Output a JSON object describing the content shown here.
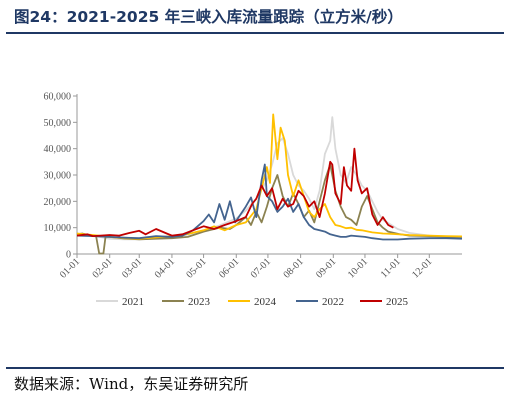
{
  "figure": {
    "title": "图24：2021-2025 年三峡入库流量跟踪（立方米/秒）",
    "source": "数据来源：Wind，东吴证券研究所"
  },
  "chart_data": {
    "type": "line",
    "title": "",
    "xlabel": "",
    "ylabel": "",
    "x_ticks": [
      "01-01",
      "02-01",
      "03-01",
      "04-01",
      "05-01",
      "06-01",
      "07-01",
      "08-01",
      "09-01",
      "10-01",
      "11-01",
      "12-01"
    ],
    "y_ticks": [
      "0",
      "10,000",
      "20,000",
      "30,000",
      "40,000",
      "50,000",
      "60,000"
    ],
    "ylim": [
      0,
      60000
    ],
    "xlim_days": [
      0,
      365
    ],
    "legend_position": "bottom",
    "grid": false,
    "series": [
      {
        "name": "2021",
        "color": "#d9d9d9",
        "points": [
          [
            0,
            7200
          ],
          [
            15,
            6900
          ],
          [
            31,
            5800
          ],
          [
            45,
            5600
          ],
          [
            59,
            5600
          ],
          [
            75,
            5900
          ],
          [
            90,
            6200
          ],
          [
            105,
            7400
          ],
          [
            120,
            9000
          ],
          [
            135,
            10800
          ],
          [
            151,
            13500
          ],
          [
            160,
            16500
          ],
          [
            170,
            21000
          ],
          [
            180,
            28000
          ],
          [
            185,
            34000
          ],
          [
            190,
            42000
          ],
          [
            195,
            44000
          ],
          [
            200,
            38000
          ],
          [
            205,
            30000
          ],
          [
            210,
            26000
          ],
          [
            215,
            24000
          ],
          [
            220,
            21000
          ],
          [
            225,
            17000
          ],
          [
            230,
            24000
          ],
          [
            235,
            38000
          ],
          [
            240,
            43000
          ],
          [
            242,
            52000
          ],
          [
            245,
            40000
          ],
          [
            250,
            30000
          ],
          [
            255,
            27000
          ],
          [
            260,
            33000
          ],
          [
            265,
            30000
          ],
          [
            270,
            26000
          ],
          [
            275,
            24000
          ],
          [
            280,
            20000
          ],
          [
            285,
            16000
          ],
          [
            290,
            13000
          ],
          [
            300,
            10500
          ],
          [
            304,
            9500
          ],
          [
            315,
            8000
          ],
          [
            334,
            7000
          ],
          [
            350,
            6500
          ],
          [
            365,
            6200
          ]
        ]
      },
      {
        "name": "2023",
        "color": "#8b8251",
        "points": [
          [
            0,
            7500
          ],
          [
            5,
            7800
          ],
          [
            10,
            7200
          ],
          [
            15,
            6800
          ],
          [
            18,
            7000
          ],
          [
            20,
            2500
          ],
          [
            21,
            200
          ],
          [
            25,
            200
          ],
          [
            27,
            6500
          ],
          [
            31,
            6500
          ],
          [
            45,
            5900
          ],
          [
            59,
            5600
          ],
          [
            75,
            5800
          ],
          [
            90,
            6000
          ],
          [
            105,
            6500
          ],
          [
            120,
            8500
          ],
          [
            135,
            10000
          ],
          [
            145,
            9500
          ],
          [
            151,
            11000
          ],
          [
            160,
            14000
          ],
          [
            165,
            11000
          ],
          [
            170,
            16000
          ],
          [
            175,
            12000
          ],
          [
            180,
            18000
          ],
          [
            185,
            25000
          ],
          [
            190,
            30000
          ],
          [
            195,
            22000
          ],
          [
            200,
            18000
          ],
          [
            205,
            23000
          ],
          [
            210,
            19000
          ],
          [
            215,
            14000
          ],
          [
            220,
            16500
          ],
          [
            225,
            12000
          ],
          [
            230,
            20000
          ],
          [
            235,
            28000
          ],
          [
            240,
            34000
          ],
          [
            245,
            24000
          ],
          [
            250,
            18000
          ],
          [
            255,
            14000
          ],
          [
            260,
            13000
          ],
          [
            265,
            11000
          ],
          [
            270,
            18000
          ],
          [
            275,
            22000
          ],
          [
            280,
            17000
          ],
          [
            285,
            12000
          ],
          [
            290,
            10000
          ],
          [
            295,
            8500
          ],
          [
            305,
            7600
          ],
          [
            315,
            7000
          ],
          [
            334,
            6800
          ],
          [
            350,
            6600
          ],
          [
            365,
            6500
          ]
        ]
      },
      {
        "name": "2024",
        "color": "#ffc000",
        "points": [
          [
            0,
            7800
          ],
          [
            15,
            7200
          ],
          [
            31,
            6500
          ],
          [
            45,
            6000
          ],
          [
            59,
            5800
          ],
          [
            75,
            6300
          ],
          [
            90,
            6800
          ],
          [
            105,
            7600
          ],
          [
            120,
            9000
          ],
          [
            130,
            10500
          ],
          [
            140,
            9000
          ],
          [
            151,
            11000
          ],
          [
            160,
            12000
          ],
          [
            170,
            17000
          ],
          [
            175,
            25000
          ],
          [
            180,
            33000
          ],
          [
            183,
            27000
          ],
          [
            186,
            53000
          ],
          [
            190,
            36000
          ],
          [
            193,
            48000
          ],
          [
            197,
            43000
          ],
          [
            200,
            30000
          ],
          [
            205,
            22000
          ],
          [
            210,
            28000
          ],
          [
            215,
            22000
          ],
          [
            220,
            16000
          ],
          [
            225,
            14000
          ],
          [
            230,
            17000
          ],
          [
            235,
            19000
          ],
          [
            240,
            14000
          ],
          [
            245,
            11000
          ],
          [
            250,
            10500
          ],
          [
            255,
            9800
          ],
          [
            260,
            10000
          ],
          [
            265,
            9200
          ],
          [
            270,
            9000
          ],
          [
            280,
            8200
          ],
          [
            290,
            7800
          ],
          [
            300,
            7600
          ],
          [
            315,
            7200
          ],
          [
            334,
            7000
          ],
          [
            350,
            6800
          ],
          [
            365,
            6700
          ]
        ]
      },
      {
        "name": "2022",
        "color": "#44648f",
        "points": [
          [
            0,
            7000
          ],
          [
            15,
            6800
          ],
          [
            31,
            6500
          ],
          [
            45,
            6200
          ],
          [
            59,
            6000
          ],
          [
            75,
            6800
          ],
          [
            90,
            6500
          ],
          [
            100,
            7000
          ],
          [
            110,
            9000
          ],
          [
            120,
            12500
          ],
          [
            125,
            15000
          ],
          [
            130,
            12000
          ],
          [
            135,
            19000
          ],
          [
            140,
            13000
          ],
          [
            145,
            20000
          ],
          [
            150,
            12000
          ],
          [
            155,
            15000
          ],
          [
            160,
            18000
          ],
          [
            165,
            21500
          ],
          [
            170,
            14000
          ],
          [
            175,
            28000
          ],
          [
            178,
            34000
          ],
          [
            180,
            22000
          ],
          [
            185,
            20000
          ],
          [
            190,
            16000
          ],
          [
            195,
            18000
          ],
          [
            200,
            21000
          ],
          [
            205,
            16000
          ],
          [
            210,
            19000
          ],
          [
            215,
            14000
          ],
          [
            220,
            11000
          ],
          [
            225,
            9500
          ],
          [
            230,
            9000
          ],
          [
            235,
            8500
          ],
          [
            240,
            7500
          ],
          [
            245,
            7000
          ],
          [
            250,
            6500
          ],
          [
            255,
            6500
          ],
          [
            260,
            7000
          ],
          [
            265,
            6800
          ],
          [
            273,
            6500
          ],
          [
            280,
            6000
          ],
          [
            290,
            5500
          ],
          [
            304,
            5500
          ],
          [
            315,
            5800
          ],
          [
            334,
            6000
          ],
          [
            350,
            6000
          ],
          [
            365,
            5800
          ]
        ]
      },
      {
        "name": "2025",
        "color": "#c00000",
        "points": [
          [
            0,
            7000
          ],
          [
            10,
            7500
          ],
          [
            15,
            6800
          ],
          [
            31,
            7200
          ],
          [
            40,
            7000
          ],
          [
            50,
            8000
          ],
          [
            59,
            8800
          ],
          [
            65,
            7500
          ],
          [
            75,
            9500
          ],
          [
            85,
            7800
          ],
          [
            90,
            7000
          ],
          [
            100,
            7500
          ],
          [
            110,
            9000
          ],
          [
            120,
            10500
          ],
          [
            130,
            9500
          ],
          [
            140,
            11000
          ],
          [
            151,
            12500
          ],
          [
            160,
            14000
          ],
          [
            166,
            19000
          ],
          [
            170,
            21000
          ],
          [
            175,
            26000
          ],
          [
            180,
            22000
          ],
          [
            185,
            25000
          ],
          [
            190,
            17000
          ],
          [
            195,
            21000
          ],
          [
            200,
            18000
          ],
          [
            205,
            19000
          ],
          [
            210,
            24000
          ],
          [
            215,
            22000
          ],
          [
            220,
            18000
          ],
          [
            225,
            20000
          ],
          [
            230,
            14000
          ],
          [
            235,
            23000
          ],
          [
            240,
            35000
          ],
          [
            242,
            34000
          ],
          [
            245,
            23000
          ],
          [
            250,
            19000
          ],
          [
            253,
            33000
          ],
          [
            256,
            26000
          ],
          [
            260,
            24000
          ],
          [
            263,
            40000
          ],
          [
            266,
            28000
          ],
          [
            270,
            23000
          ],
          [
            275,
            25000
          ],
          [
            280,
            15000
          ],
          [
            285,
            11000
          ],
          [
            290,
            14000
          ],
          [
            295,
            11000
          ],
          [
            300,
            10000
          ]
        ]
      }
    ]
  }
}
